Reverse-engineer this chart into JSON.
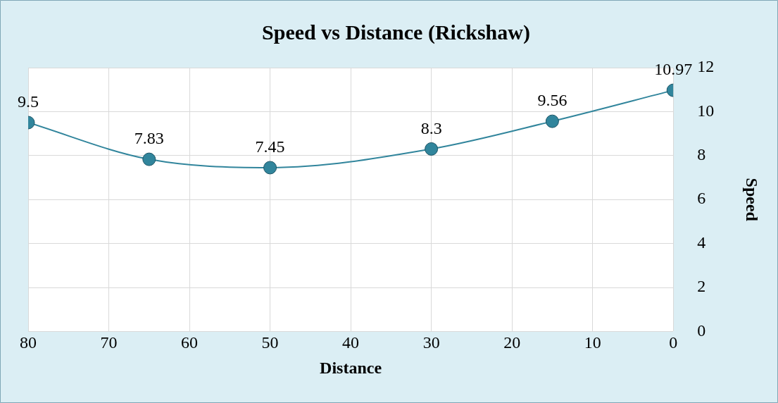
{
  "chart_data": {
    "type": "line",
    "title": "Speed vs Distance (Rickshaw)",
    "xlabel": "Distance",
    "ylabel": "Speed",
    "x": [
      80,
      65,
      50,
      30,
      15,
      0
    ],
    "series": [
      {
        "color": "#31859c",
        "values": [
          9.5,
          7.83,
          7.45,
          8.3,
          9.56,
          10.97
        ]
      }
    ],
    "xlim": [
      80,
      0
    ],
    "xticks": [
      80,
      70,
      60,
      50,
      40,
      30,
      20,
      10,
      0
    ],
    "ylim": [
      0,
      12
    ],
    "yticks": [
      0,
      2,
      4,
      6,
      8,
      10,
      12
    ],
    "grid": true,
    "legend": false,
    "marker": "circle",
    "line_style": "solid",
    "data_labels": true
  }
}
